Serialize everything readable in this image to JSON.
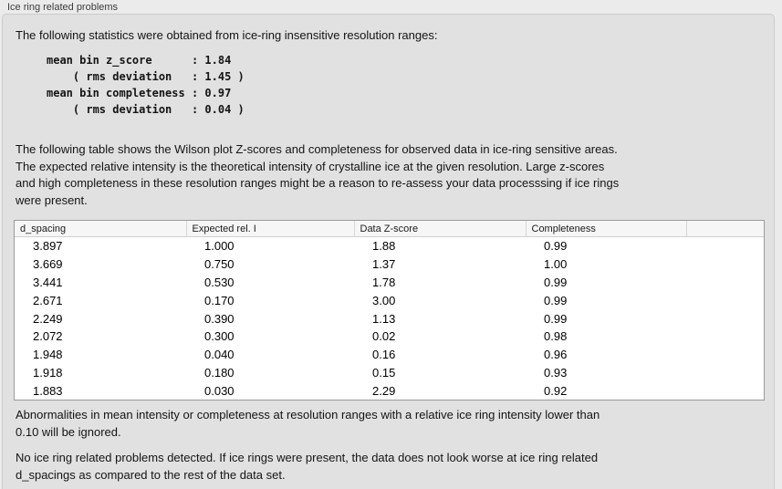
{
  "group": {
    "title": "Ice ring related problems"
  },
  "intro": "The following statistics were obtained from ice-ring insensitive resolution ranges:",
  "stats_block": "mean bin z_score      : 1.84\n    ( rms deviation   : 1.45 )\nmean bin completeness : 0.97\n    ( rms deviation   : 0.04 )",
  "stats": {
    "mean_bin_z_score": "1.84",
    "z_score_rms_deviation": "1.45",
    "mean_bin_completeness": "0.97",
    "completeness_rms_deviation": "0.04"
  },
  "description": "The following table shows the Wilson plot Z-scores and completeness for observed data in ice-ring sensitive areas.\nThe expected relative intensity is the theoretical intensity of crystalline ice at the given resolution. Large z-scores\nand high completeness in these resolution ranges might be a reason to re-assess your data processsing if ice rings\nwere present.",
  "table": {
    "columns": [
      "d_spacing",
      "Expected rel. I",
      "Data Z-score",
      "Completeness",
      ""
    ],
    "rows": [
      [
        "3.897",
        "1.000",
        "1.88",
        "0.99"
      ],
      [
        "3.669",
        "0.750",
        "1.37",
        "1.00"
      ],
      [
        "3.441",
        "0.530",
        "1.78",
        "0.99"
      ],
      [
        "2.671",
        "0.170",
        "3.00",
        "0.99"
      ],
      [
        "2.249",
        "0.390",
        "1.13",
        "0.99"
      ],
      [
        "2.072",
        "0.300",
        "0.02",
        "0.98"
      ],
      [
        "1.948",
        "0.040",
        "0.16",
        "0.96"
      ],
      [
        "1.918",
        "0.180",
        "0.15",
        "0.93"
      ],
      [
        "1.883",
        "0.030",
        "2.29",
        "0.92"
      ]
    ]
  },
  "note_ignore": "Abnormalities in mean intensity or completeness at resolution ranges with a relative ice ring intensity lower than\n0.10 will be ignored.",
  "conclusion": "No ice ring related problems detected. If ice rings were present, the data does not look worse at ice ring related\nd_spacings as compared to the rest of the data set."
}
